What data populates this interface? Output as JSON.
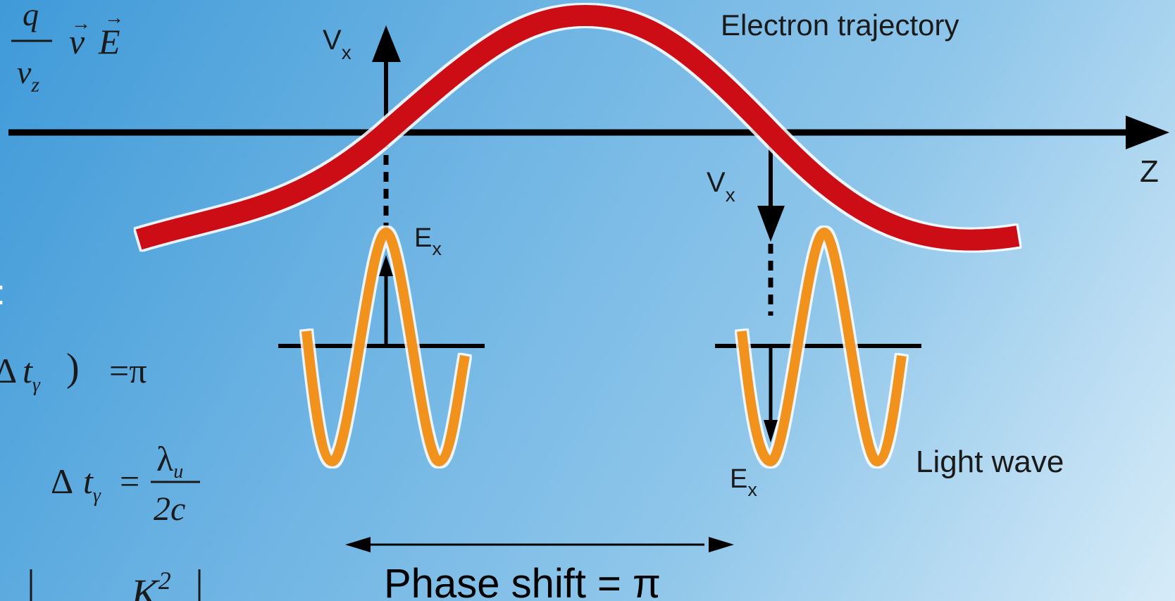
{
  "labels": {
    "electron_trajectory": "Electron trajectory",
    "axis_z": "Z",
    "vx_main": "V",
    "vx_sub": "x",
    "ex_main": "E",
    "ex_sub": "x",
    "light_wave": "Light wave",
    "phase_shift": "Phase shift = π"
  },
  "equations": {
    "frac_num": "q",
    "frac_den_main": "v",
    "frac_den_sub": "z",
    "vec_v": "v",
    "vec_E": "E",
    "colon_fragment": ":",
    "eq1_delta": "Δ",
    "eq1_t": "t",
    "eq1_sub": "γ",
    "eq1_rparen": ")",
    "eq1_rhs": "=π",
    "eq2_lhs_delta": "Δ",
    "eq2_lhs_t": "t",
    "eq2_lhs_sub": "γ",
    "eq2_eq": "=",
    "eq2_num_main": "λ",
    "eq2_num_sub": "u",
    "eq2_den": "2c",
    "eq3_K": "K",
    "eq3_exp": "2"
  },
  "colors": {
    "trajectory": "#cc0a14",
    "light_wave": "#f0921e",
    "axes": "#000000"
  }
}
